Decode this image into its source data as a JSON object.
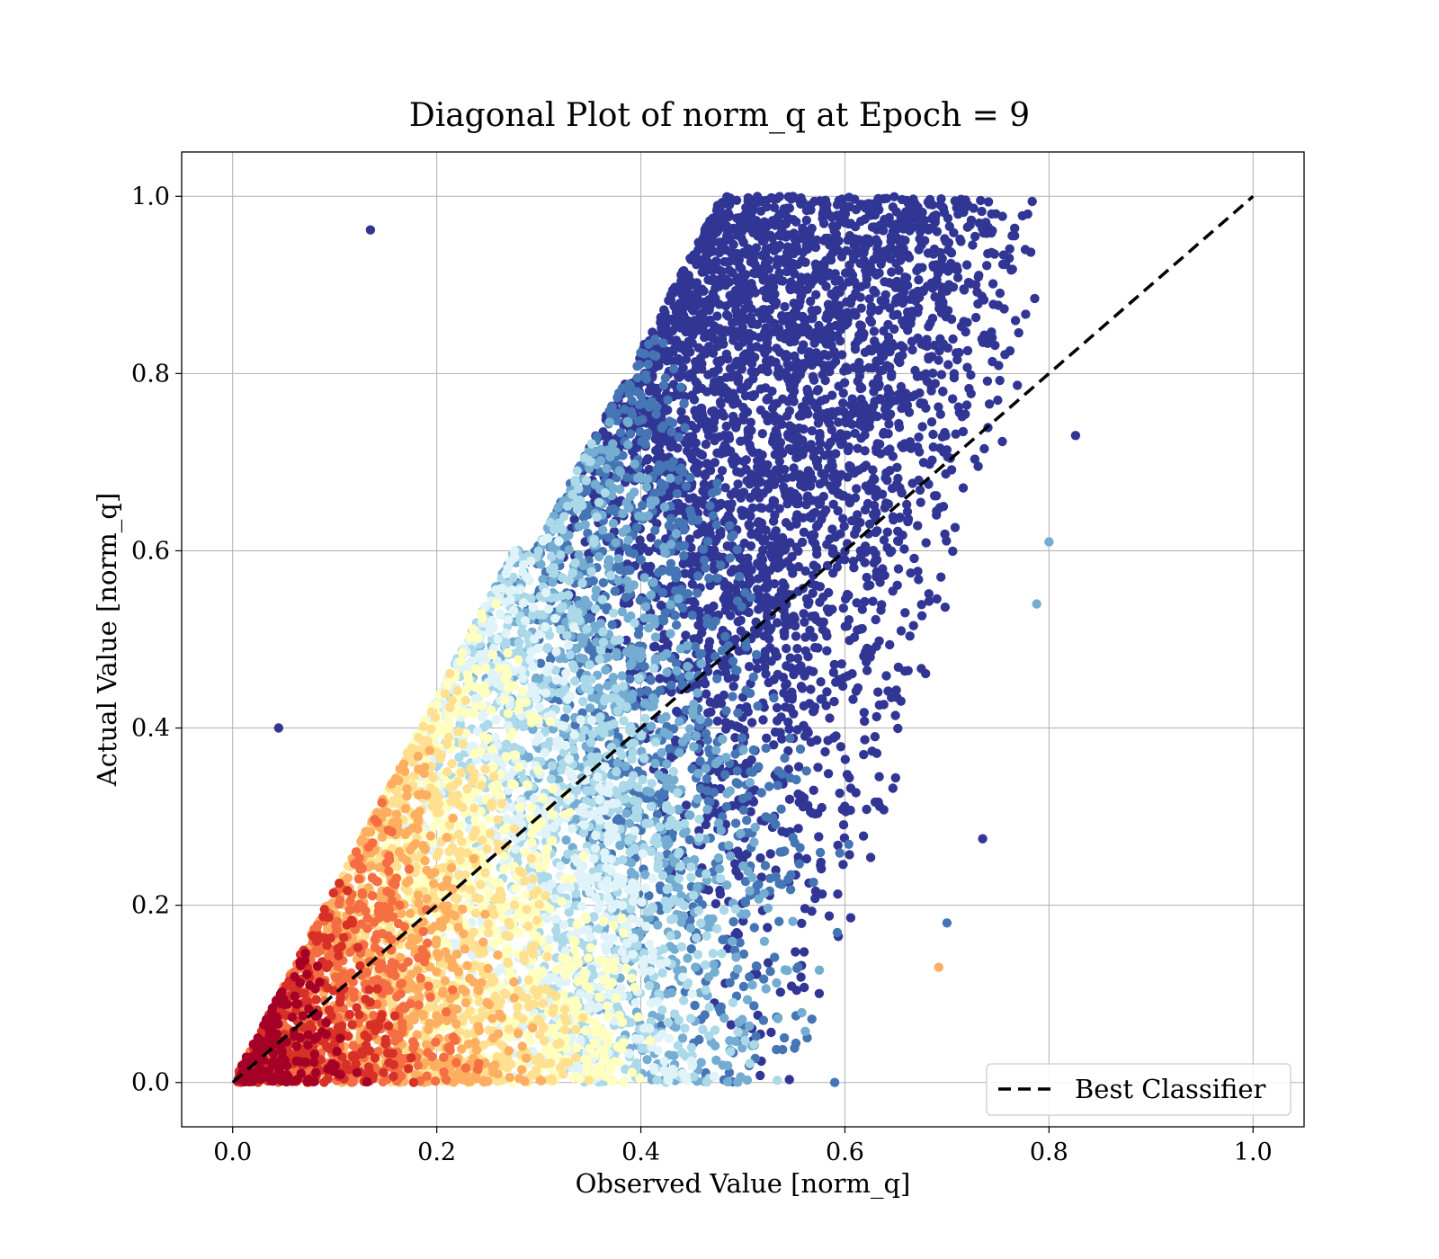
{
  "chart_data": {
    "type": "scatter",
    "title": "Diagonal Plot of norm_q at Epoch = 9",
    "xlabel": "Observed Value [norm_q]",
    "ylabel": "Actual Value [norm_q]",
    "xlim": [
      -0.05,
      1.05
    ],
    "ylim": [
      -0.05,
      1.05
    ],
    "xticks": [
      0.0,
      0.2,
      0.4,
      0.6,
      0.8,
      1.0
    ],
    "yticks": [
      0.0,
      0.2,
      0.4,
      0.6,
      0.8,
      1.0
    ],
    "xtick_labels": [
      "0.0",
      "0.2",
      "0.4",
      "0.6",
      "0.8",
      "1.0"
    ],
    "ytick_labels": [
      "0.0",
      "0.2",
      "0.4",
      "0.6",
      "0.8",
      "1.0"
    ],
    "grid": true,
    "colormap": "RdYlBu",
    "colormap_colors": [
      "#a50026",
      "#d73027",
      "#f46d43",
      "#fdae61",
      "#fee090",
      "#ffffbf",
      "#e0f3f8",
      "#abd9e9",
      "#74add1",
      "#4575b4",
      "#313695"
    ],
    "reference_line": {
      "label": "Best Classifier",
      "x": [
        0.0,
        1.0
      ],
      "y": [
        0.0,
        1.0
      ],
      "color": "#000000",
      "style": "dashed"
    },
    "legend": {
      "location": "lower-right",
      "entries": [
        "Best Classifier"
      ]
    },
    "point_count": 9000
  }
}
